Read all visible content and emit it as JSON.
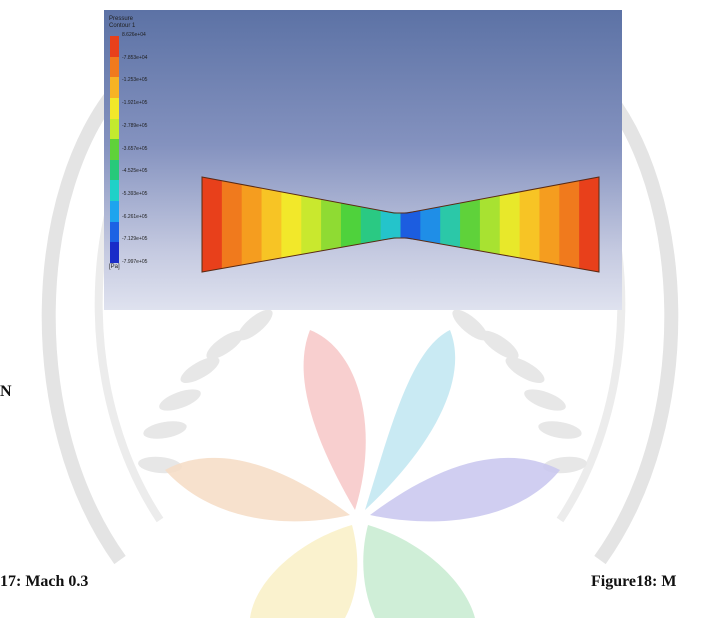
{
  "document": {
    "section_fragment": "N",
    "caption_left": "17: Mach 0.3",
    "caption_right": "Figure18: M"
  },
  "figure": {
    "legend": {
      "title_line1": "Pressure",
      "title_line2": "Contour 1",
      "levels": [
        "8.626e+04",
        "-7.853e+04",
        "-1.253e+05",
        "-1.921e+05",
        "-2.789e+05",
        "-3.657e+05",
        "-4.525e+05",
        "-5.393e+05",
        "-6.261e+05",
        "-7.129e+05",
        "-7.997e+05"
      ],
      "unit": "[Pa]",
      "colors": [
        "#e8401b",
        "#f07a1d",
        "#f7b324",
        "#f2e82a",
        "#c3ea2f",
        "#5fd23a",
        "#27c97a",
        "#1fd1c8",
        "#1da4ee",
        "#1c62e4",
        "#1a2cc8"
      ]
    },
    "nozzle_band_colors": [
      "#e8401b",
      "#f07a1d",
      "#f59d1f",
      "#f7c425",
      "#f2e82a",
      "#c9e82e",
      "#8fdb33",
      "#4fd23c",
      "#2ac983",
      "#24c4cb",
      "#1c5de0",
      "#1f8ee7",
      "#2bc8a8",
      "#5fd23a",
      "#a8e231",
      "#e8e82a",
      "#f7c425",
      "#f59d1f",
      "#f07a1d",
      "#e8401b"
    ],
    "background_color": "#6f82b5"
  },
  "watermark": {
    "petal_colors": [
      "#f7c7c7",
      "#bfe6f1",
      "#c8c6ef",
      "#f6dcc4",
      "#f9f0c6",
      "#c7ebd0"
    ]
  }
}
